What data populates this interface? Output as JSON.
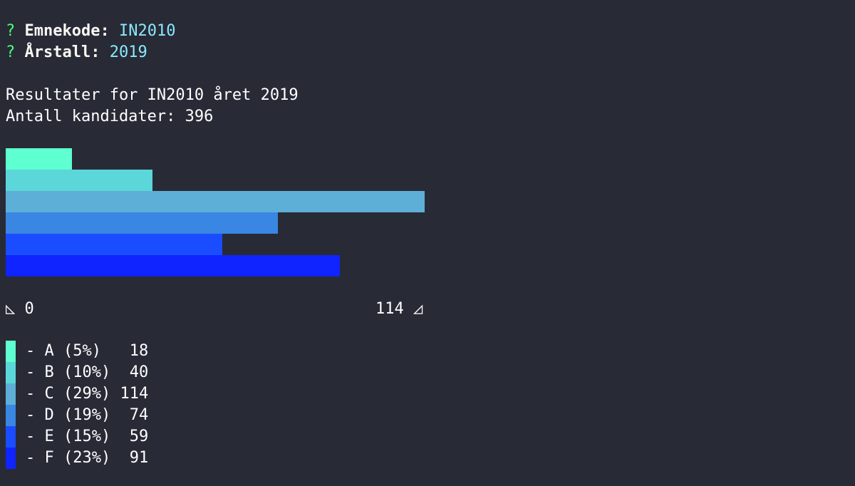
{
  "prompt": {
    "q1": {
      "marker": "?",
      "label": "Emnekode:",
      "answer": "IN2010"
    },
    "q2": {
      "marker": "?",
      "label": "Årstall:",
      "answer": "2019"
    }
  },
  "summary": {
    "results_line": "Resultater for IN2010 året 2019",
    "candidates_line": "Antall kandidater: 396"
  },
  "axis": {
    "min_icon": "◺",
    "min_label": "0",
    "max_label": "114",
    "max_icon": "◿"
  },
  "chart_data": {
    "type": "bar",
    "orientation": "horizontal",
    "categories": [
      "A",
      "B",
      "C",
      "D",
      "E",
      "F"
    ],
    "values": [
      18,
      40,
      114,
      74,
      59,
      91
    ],
    "percents": [
      "5%",
      "10%",
      "29%",
      "19%",
      "15%",
      "23%"
    ],
    "colors": [
      "#5effd0",
      "#5bd6d9",
      "#5eafd8",
      "#3a86e3",
      "#1a4dff",
      "#0f24ff"
    ],
    "xlim": [
      0,
      114
    ],
    "total": 396
  },
  "legend": [
    {
      "text": "- A (5%)   18"
    },
    {
      "text": "- B (10%)  40"
    },
    {
      "text": "- C (29%) 114"
    },
    {
      "text": "- D (19%)  74"
    },
    {
      "text": "- E (15%)  59"
    },
    {
      "text": "- F (23%)  91"
    }
  ]
}
